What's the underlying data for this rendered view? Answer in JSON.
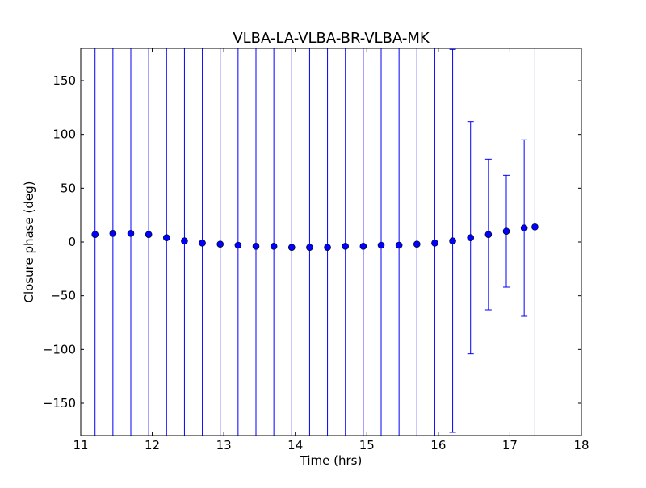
{
  "chart_data": {
    "type": "scatter",
    "title": "VLBA-LA-VLBA-BR-VLBA-MK",
    "xlabel": "Time (hrs)",
    "ylabel": "Closure phase (deg)",
    "xlim": [
      11,
      18
    ],
    "ylim": [
      -180,
      180
    ],
    "xticks": [
      "11",
      "12",
      "13",
      "14",
      "15",
      "16",
      "17",
      "18"
    ],
    "yticks": [
      "−150",
      "−100",
      "−50",
      "0",
      "50",
      "100",
      "150"
    ],
    "grid": false,
    "color": "#0000ff",
    "series": [
      {
        "x": [
          11.2,
          11.45,
          11.7,
          11.95,
          12.2,
          12.45,
          12.7,
          12.95,
          13.2,
          13.45,
          13.7,
          13.95,
          14.2,
          14.45,
          14.7,
          14.95,
          15.2,
          15.45,
          15.7,
          15.95,
          16.2,
          16.45,
          16.7,
          16.95,
          17.2,
          17.35
        ],
        "y": [
          7,
          8,
          8,
          7,
          4,
          1,
          -1,
          -2,
          -3,
          -4,
          -4,
          -5,
          -5,
          -5,
          -4,
          -4,
          -3,
          -3,
          -2,
          -1,
          1,
          4,
          7,
          10,
          13,
          14
        ],
        "yerr": [
          200,
          200,
          200,
          200,
          200,
          200,
          200,
          200,
          200,
          200,
          200,
          200,
          200,
          200,
          200,
          200,
          200,
          200,
          200,
          200,
          178,
          108,
          70,
          52,
          82,
          200
        ]
      }
    ]
  }
}
